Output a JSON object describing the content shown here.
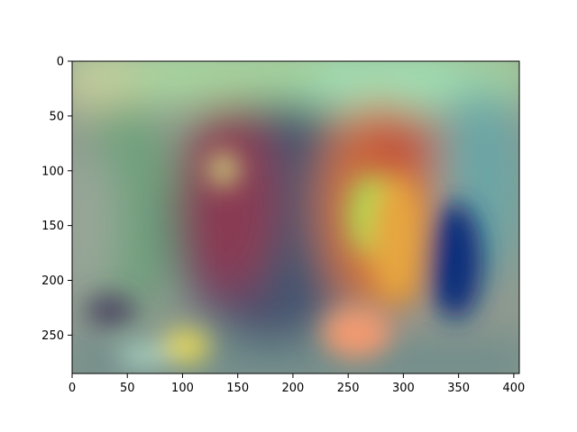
{
  "figure": {
    "type": "image",
    "description": "",
    "x_ticks": [
      "0",
      "50",
      "100",
      "150",
      "200",
      "250",
      "300",
      "350",
      "400"
    ],
    "y_ticks": [
      "0",
      "50",
      "100",
      "150",
      "200",
      "250"
    ],
    "x_range": [
      0,
      405
    ],
    "y_range": [
      0,
      285
    ],
    "palette": {
      "frame": "#000000",
      "background": "#ffffff"
    }
  }
}
